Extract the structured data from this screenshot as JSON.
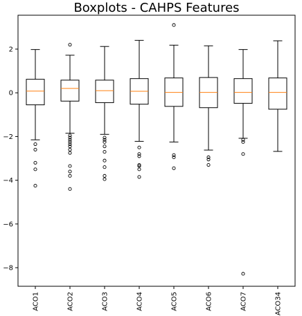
{
  "chart_data": {
    "type": "boxplot",
    "title": "Boxplots - CAHPS Features",
    "xlabel": "",
    "ylabel": "",
    "categories": [
      "ACO1",
      "ACO2",
      "ACO3",
      "ACO4",
      "ACO5",
      "ACO6",
      "ACO7",
      "ACO34"
    ],
    "y_ticks": [
      2,
      0,
      -2,
      -4,
      -6,
      -8
    ],
    "ylim": [
      -8.85,
      3.55
    ],
    "grid": false,
    "box_color": "#000000",
    "median_color": "#ff7f0e",
    "series": [
      {
        "category": "ACO1",
        "whisker_low": -2.15,
        "q1": -0.55,
        "median": 0.08,
        "q3": 0.62,
        "whisker_high": 1.98,
        "outliers": [
          -2.35,
          -2.6,
          -3.2,
          -3.5,
          -4.25
        ]
      },
      {
        "category": "ACO2",
        "whisker_low": -1.85,
        "q1": -0.38,
        "median": 0.2,
        "q3": 0.58,
        "whisker_high": 1.72,
        "outliers": [
          2.2,
          -1.95,
          -2.05,
          -2.15,
          -2.25,
          -2.35,
          -2.45,
          -2.6,
          -2.75,
          -3.35,
          -3.6,
          -3.8,
          -4.4
        ]
      },
      {
        "category": "ACO3",
        "whisker_low": -1.9,
        "q1": -0.45,
        "median": 0.1,
        "q3": 0.58,
        "whisker_high": 2.12,
        "outliers": [
          -2.05,
          -2.15,
          -2.25,
          -2.45,
          -2.7,
          -3.1,
          -3.4,
          -3.8,
          -3.95
        ]
      },
      {
        "category": "ACO4",
        "whisker_low": -2.22,
        "q1": -0.52,
        "median": 0.07,
        "q3": 0.65,
        "whisker_high": 2.4,
        "outliers": [
          -2.5,
          -2.8,
          -2.9,
          -3.3,
          -3.35,
          -3.5,
          -3.85
        ]
      },
      {
        "category": "ACO5",
        "whisker_low": -2.25,
        "q1": -0.62,
        "median": 0.02,
        "q3": 0.68,
        "whisker_high": 2.18,
        "outliers": [
          3.1,
          -2.85,
          -2.95,
          -3.45
        ]
      },
      {
        "category": "ACO6",
        "whisker_low": -2.62,
        "q1": -0.68,
        "median": 0.02,
        "q3": 0.7,
        "whisker_high": 2.15,
        "outliers": [
          -2.95,
          -3.05,
          -3.3
        ]
      },
      {
        "category": "ACO7",
        "whisker_low": -2.08,
        "q1": -0.48,
        "median": 0.02,
        "q3": 0.65,
        "whisker_high": 1.98,
        "outliers": [
          -2.15,
          -2.25,
          -2.8,
          -8.28
        ]
      },
      {
        "category": "ACO34",
        "whisker_low": -2.68,
        "q1": -0.75,
        "median": 0.02,
        "q3": 0.68,
        "whisker_high": 2.38,
        "outliers": []
      }
    ]
  }
}
